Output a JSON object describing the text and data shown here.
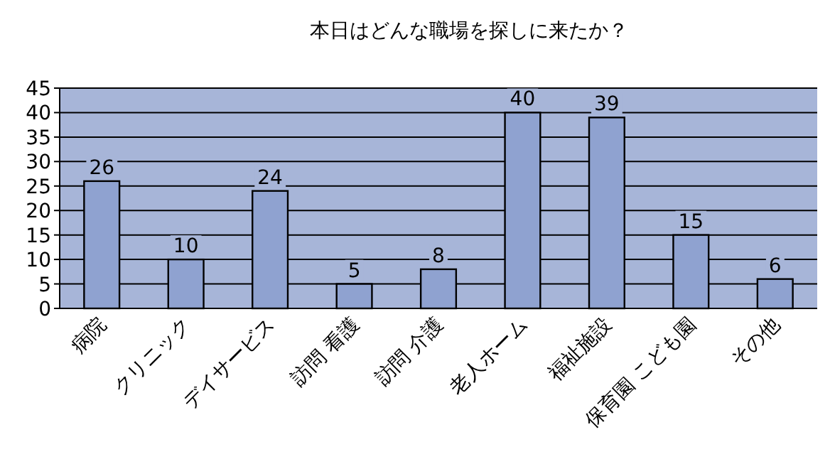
{
  "chart_data": {
    "type": "bar",
    "title": "本日はどんな職場を探しに来たか？",
    "categories": [
      "病院",
      "クリニック",
      "デイサービス",
      "訪問 看護",
      "訪問 介護",
      "老人ホーム",
      "福祉施設",
      "保育園 こども園",
      "その他"
    ],
    "series": [
      {
        "color": "#8fa2d0",
        "values": [
          26,
          10,
          24,
          5,
          8,
          40,
          39,
          15,
          6
        ]
      }
    ],
    "ylim": [
      0,
      45
    ],
    "yticks": [
      0,
      5,
      10,
      15,
      20,
      25,
      30,
      35,
      40,
      45
    ],
    "grid": "y",
    "data_labels": true
  }
}
